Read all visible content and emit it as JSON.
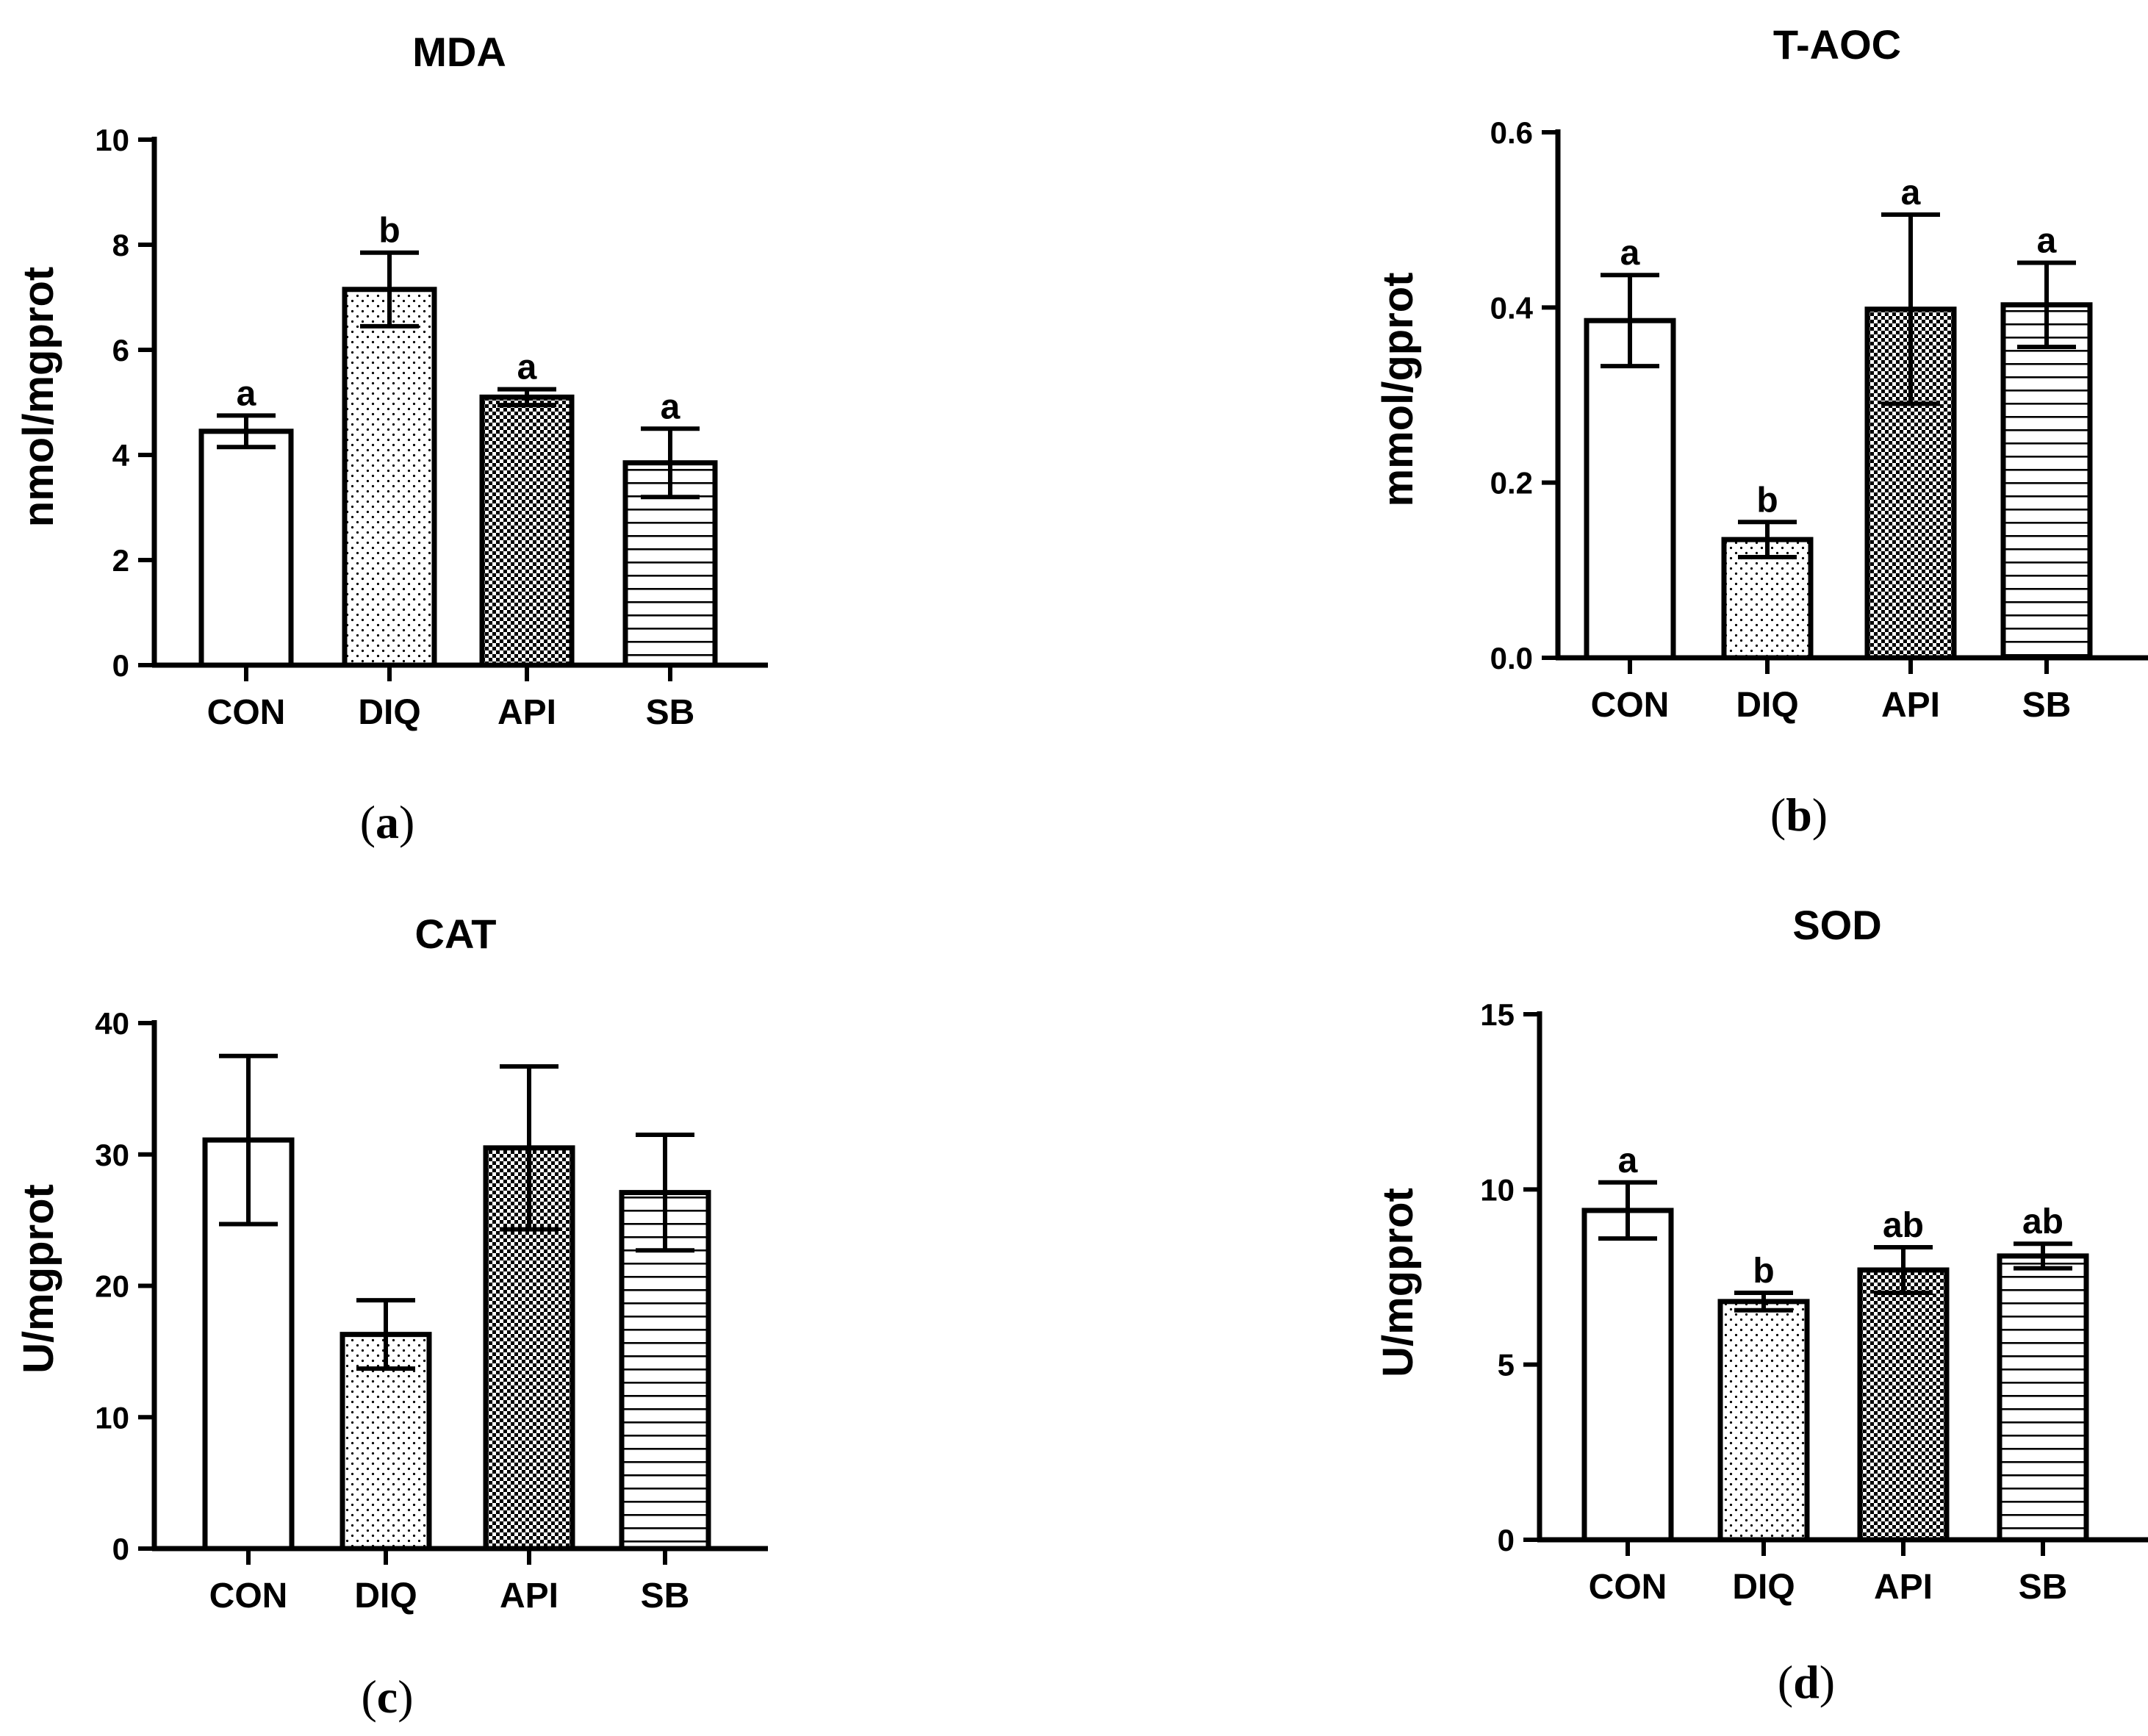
{
  "figure": {
    "categories": [
      "CON",
      "DIQ",
      "API",
      "SB"
    ],
    "patterns": [
      "blank",
      "dots",
      "checker",
      "hlines"
    ]
  },
  "chart_data": [
    {
      "id": "a",
      "type": "bar",
      "title": "MDA",
      "ylabel": "nmol/mgprot",
      "xlabel": "",
      "categories": [
        "CON",
        "DIQ",
        "API",
        "SB"
      ],
      "values": [
        4.45,
        7.15,
        5.1,
        3.85
      ],
      "errors": [
        0.3,
        0.7,
        0.15,
        0.65
      ],
      "letters": [
        "a",
        "b",
        "a",
        "a"
      ],
      "ylim": [
        0,
        10
      ],
      "yticks": [
        0,
        2,
        4,
        6,
        8,
        10
      ],
      "yticklabels": [
        "0",
        "2",
        "4",
        "6",
        "8",
        "10"
      ],
      "panel_open": "(",
      "panel_letter": "a",
      "panel_close": ")"
    },
    {
      "id": "b",
      "type": "bar",
      "title": "T-AOC",
      "ylabel": "mmol/gprot",
      "xlabel": "",
      "categories": [
        "CON",
        "DIQ",
        "API",
        "SB"
      ],
      "values": [
        0.385,
        0.135,
        0.398,
        0.403
      ],
      "errors": [
        0.052,
        0.02,
        0.108,
        0.048
      ],
      "letters": [
        "a",
        "b",
        "a",
        "a"
      ],
      "ylim": [
        0,
        0.6
      ],
      "yticks": [
        0,
        0.2,
        0.4,
        0.6
      ],
      "yticklabels": [
        "0.0",
        "0.2",
        "0.4",
        "0.6"
      ],
      "panel_open": "(",
      "panel_letter": "b",
      "panel_close": ")"
    },
    {
      "id": "c",
      "type": "bar",
      "title": "CAT",
      "ylabel": "U/mgprot",
      "xlabel": "",
      "categories": [
        "CON",
        "DIQ",
        "API",
        "SB"
      ],
      "values": [
        31.1,
        16.3,
        30.5,
        27.1
      ],
      "errors": [
        6.4,
        2.6,
        6.2,
        4.4
      ],
      "letters": [
        "",
        "",
        "",
        ""
      ],
      "ylim": [
        0,
        40
      ],
      "yticks": [
        0,
        10,
        20,
        30,
        40
      ],
      "yticklabels": [
        "0",
        "10",
        "20",
        "30",
        "40"
      ],
      "panel_open": "(",
      "panel_letter": "c",
      "panel_close": ")"
    },
    {
      "id": "d",
      "type": "bar",
      "title": "SOD",
      "ylabel": "U/mgprot",
      "xlabel": "",
      "categories": [
        "CON",
        "DIQ",
        "API",
        "SB"
      ],
      "values": [
        9.4,
        6.8,
        7.7,
        8.1
      ],
      "errors": [
        0.8,
        0.25,
        0.65,
        0.35
      ],
      "letters": [
        "a",
        "b",
        "ab",
        "ab"
      ],
      "ylim": [
        0,
        15
      ],
      "yticks": [
        0,
        5,
        10,
        15
      ],
      "yticklabels": [
        "0",
        "5",
        "10",
        "15"
      ],
      "panel_open": "(",
      "panel_letter": "d",
      "panel_close": ")"
    }
  ]
}
